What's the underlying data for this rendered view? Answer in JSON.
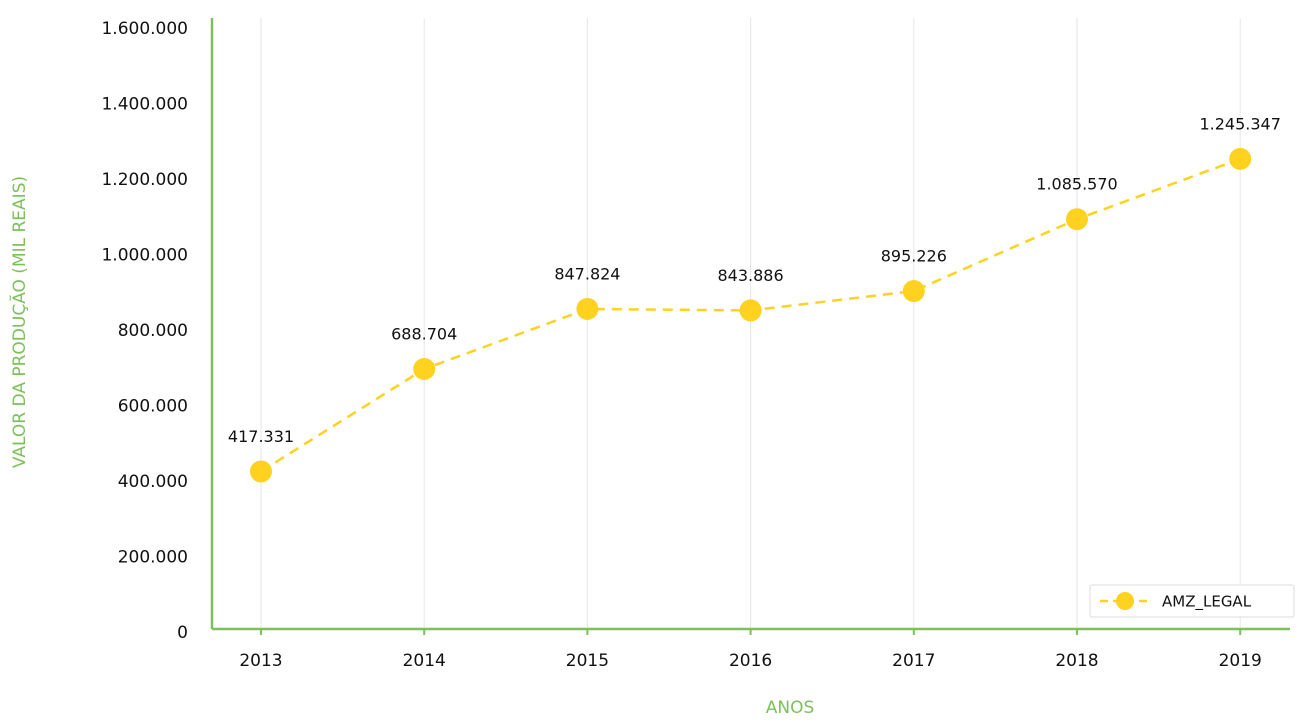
{
  "chart_data": {
    "type": "line",
    "xlabel": "ANOS",
    "ylabel": "VALOR DA PRODUÇÃO (MIL REAIS)",
    "categories": [
      "2013",
      "2014",
      "2015",
      "2016",
      "2017",
      "2018",
      "2019"
    ],
    "series": [
      {
        "name": "AMZ_LEGAL",
        "color": "#ffd21f",
        "values": [
          417331,
          688704,
          847824,
          843886,
          895226,
          1085570,
          1245347
        ],
        "value_labels": [
          "417.331",
          "688.704",
          "847.824",
          "843.886",
          "895.226",
          "1.085.570",
          "1.245.347"
        ]
      }
    ],
    "ylim": [
      0,
      1600000
    ],
    "yticks": [
      0,
      {
        "value": 200000,
        "label": "200.000"
      },
      {
        "value": 400000,
        "label": "400.000"
      },
      {
        "value": 600000,
        "label": "600.000"
      },
      {
        "value": 800000,
        "label": "800.000"
      },
      {
        "value": 1000000,
        "label": "1.000.000"
      },
      {
        "value": 1200000,
        "label": "1.200.000"
      },
      {
        "value": 1400000,
        "label": "1.400.000"
      },
      {
        "value": 1600000,
        "label": "1.600.000"
      }
    ],
    "grid": true,
    "legend": "lower right",
    "axis_color": "#7dc05a"
  }
}
